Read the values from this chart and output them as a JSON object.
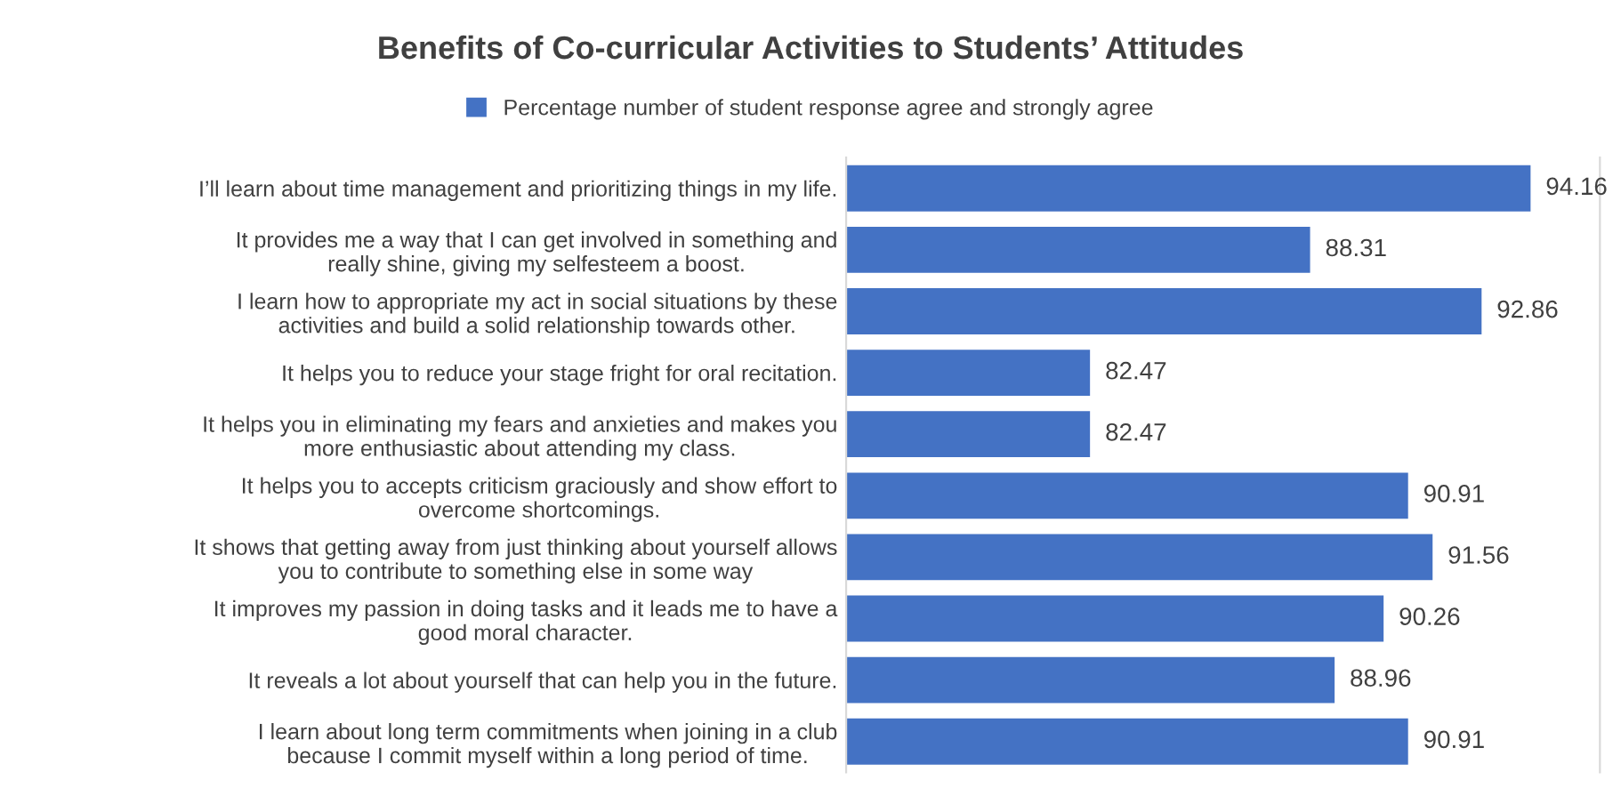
{
  "chart_data": {
    "type": "bar",
    "orientation": "horizontal",
    "title": "Benefits of Co-curricular Activities to Students’ Attitudes",
    "categories": [
      "I’ll learn about time management and prioritizing things in my life.",
      "It provides me a way that I can get involved in something and\nreally shine, giving my selfesteem a boost.",
      "I learn how to appropriate my act in social situations by these\nactivities and build a solid relationship towards other.",
      "It helps you to reduce your stage fright for oral recitation.",
      "It helps you in eliminating my fears and anxieties and makes you\nmore enthusiastic about attending my class.",
      "It helps you to accepts criticism graciously and show effort to\novercome shortcomings.",
      "It shows that getting away from just thinking about yourself allows\nyou to contribute to something else in some way",
      "It improves my passion in doing tasks and it leads me to have a\ngood moral character.",
      "It reveals a lot about yourself that can help you in the future.",
      "I learn about long term commitments when joining in a club\nbecause I commit myself within a long period of time."
    ],
    "series": [
      {
        "name": "Percentage number of student response agree and strongly agree",
        "color": "#4472c4",
        "values": [
          94.16,
          88.31,
          92.86,
          82.47,
          82.47,
          90.91,
          91.56,
          90.26,
          88.96,
          90.91
        ]
      }
    ],
    "xlim": [
      76,
      96
    ],
    "data_labels": true,
    "legend": "top",
    "grid": false,
    "tick_labels": "y"
  }
}
